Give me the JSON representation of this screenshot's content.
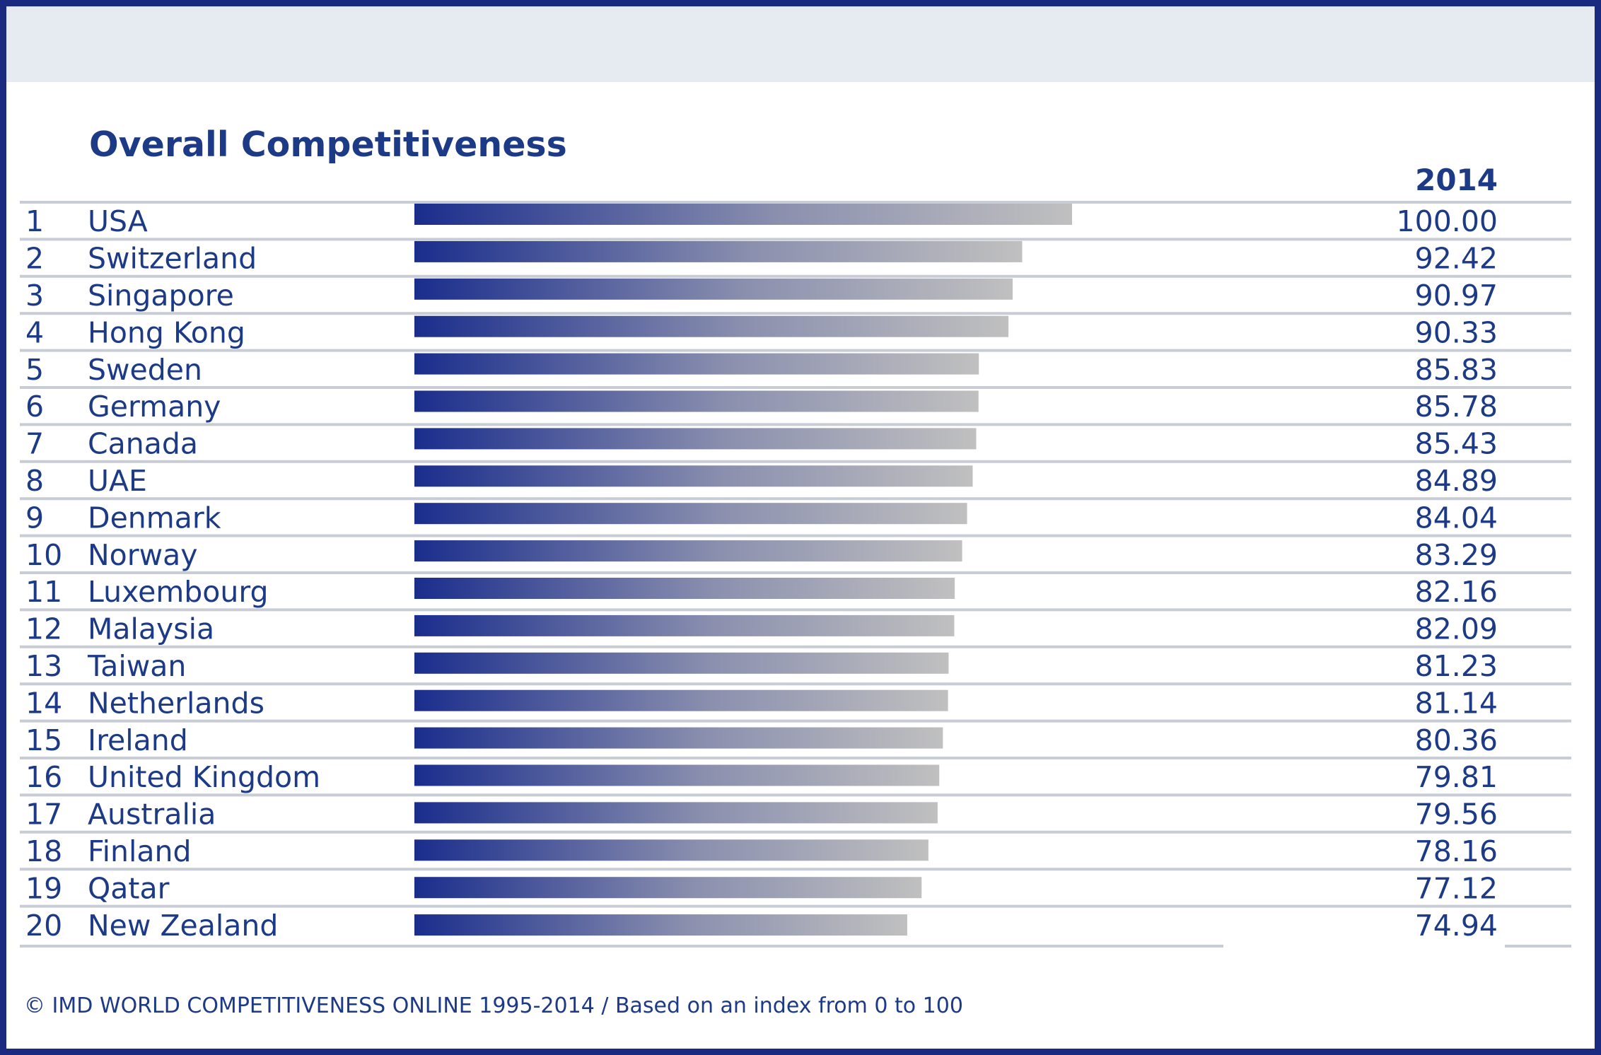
{
  "chart_data": {
    "type": "bar",
    "orientation": "horizontal",
    "title": "Overall Competitiveness",
    "column_header": "2014",
    "ranks": [
      "1",
      "2",
      "3",
      "4",
      "5",
      "6",
      "7",
      "8",
      "9",
      "10",
      "11",
      "12",
      "13",
      "14",
      "15",
      "16",
      "17",
      "18",
      "19",
      "20"
    ],
    "categories": [
      "USA",
      "Switzerland",
      "Singapore",
      "Hong Kong",
      "Sweden",
      "Germany",
      "Canada",
      "UAE",
      "Denmark",
      "Norway",
      "Luxembourg",
      "Malaysia",
      "Taiwan",
      "Netherlands",
      "Ireland",
      "United Kingdom",
      "Australia",
      "Finland",
      "Qatar",
      "New Zealand"
    ],
    "values": [
      100.0,
      92.42,
      90.97,
      90.33,
      85.83,
      85.78,
      85.43,
      84.89,
      84.04,
      83.29,
      82.16,
      82.09,
      81.23,
      81.14,
      80.36,
      79.81,
      79.56,
      78.16,
      77.12,
      74.94
    ],
    "value_labels": [
      "100.00",
      "92.42",
      "90.97",
      "90.33",
      "85.83",
      "85.78",
      "85.43",
      "84.89",
      "84.04",
      "83.29",
      "82.16",
      "82.09",
      "81.23",
      "81.14",
      "80.36",
      "79.81",
      "79.56",
      "78.16",
      "77.12",
      "74.94"
    ],
    "xlim": [
      0,
      100
    ],
    "grid": false,
    "legend": "none",
    "colors": {
      "bar_start": "#1a2d8c",
      "bar_end": "#c0c0c0",
      "text": "#1d3a86",
      "rule": "#c8ccd4",
      "frame": "#1a2a80",
      "band": "#e6ebf2"
    }
  },
  "footnote": "© IMD WORLD COMPETITIVENESS ONLINE 1995-2014 / Based on an index from 0 to 100"
}
